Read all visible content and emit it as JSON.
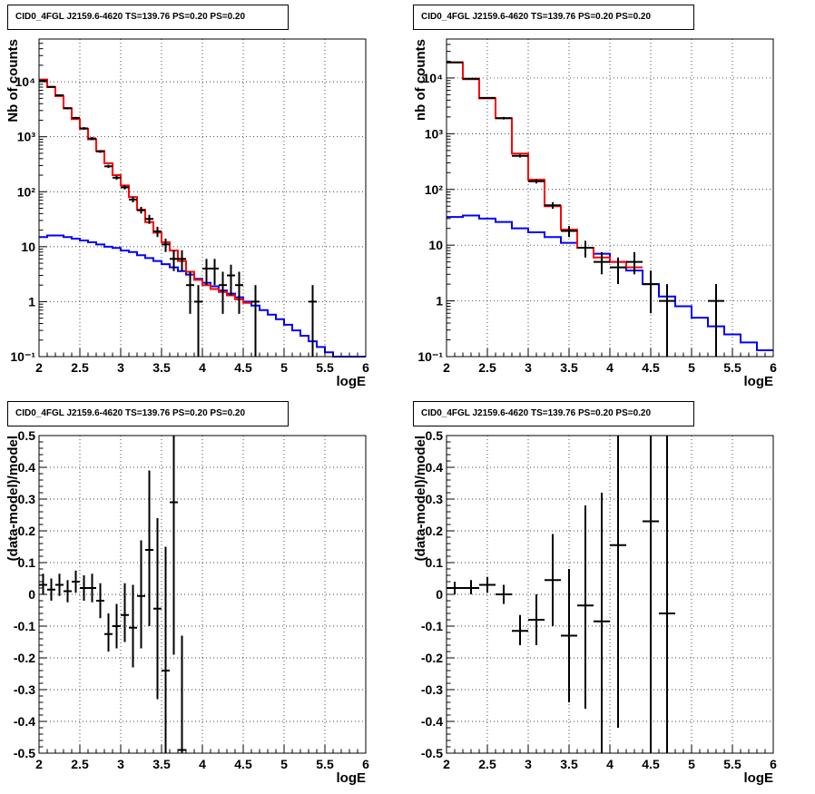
{
  "chart_data": [
    {
      "type": "histogram",
      "title": "CID0_4FGL J2159.6-4620 TS=139.76 PS=0.20 PS=0.20",
      "xlabel": "logE",
      "ylabel": "Nb of counts",
      "xlim": [
        2,
        6
      ],
      "ylim": [
        0.1,
        60000
      ],
      "log_y": true,
      "grid": true,
      "x_ticks": [
        "2",
        "2.5",
        "3",
        "3.5",
        "4",
        "4.5",
        "5",
        "5.5",
        "6"
      ],
      "y_ticks": [
        "10⁻¹",
        "1",
        "10",
        "10²",
        "10³",
        "10⁴"
      ],
      "bin_width": 0.1,
      "model_total": {
        "color": "#ff0000",
        "bin_starts": [
          2.0,
          2.1,
          2.2,
          2.3,
          2.4,
          2.5,
          2.6,
          2.7,
          2.8,
          2.9,
          3.0,
          3.1,
          3.2,
          3.3,
          3.4,
          3.5,
          3.6,
          3.7,
          3.8,
          3.9,
          4.0,
          4.1,
          4.2,
          4.3,
          4.4,
          4.5
        ],
        "values": [
          11000,
          8000,
          5500,
          3300,
          2100,
          1400,
          900,
          550,
          330,
          200,
          130,
          80,
          47,
          28,
          18,
          12,
          8.5,
          5.5,
          3.5,
          2.5,
          2.0,
          1.7,
          1.5,
          1.3,
          1.1,
          0.95
        ]
      },
      "model_background": {
        "color": "#0000ff",
        "bin_starts": [
          2.0,
          2.1,
          2.2,
          2.3,
          2.4,
          2.5,
          2.6,
          2.7,
          2.8,
          2.9,
          3.0,
          3.1,
          3.2,
          3.3,
          3.4,
          3.5,
          3.6,
          3.7,
          3.8,
          3.9,
          4.0,
          4.1,
          4.2,
          4.3,
          4.4,
          4.5,
          4.6,
          4.7,
          4.8,
          4.9,
          5.0,
          5.1,
          5.2,
          5.3,
          5.4,
          5.5,
          5.6,
          5.7,
          5.8,
          5.9
        ],
        "values": [
          15,
          16,
          16,
          15,
          14,
          13,
          12,
          11,
          10,
          9.5,
          8.5,
          8,
          7,
          6.2,
          5.5,
          4.8,
          4.2,
          3.6,
          3.1,
          2.6,
          2.2,
          1.9,
          1.6,
          1.4,
          1.2,
          1.0,
          0.85,
          0.7,
          0.58,
          0.48,
          0.38,
          0.3,
          0.24,
          0.19,
          0.15,
          0.12,
          0.1,
          0.1,
          0.1,
          0.1
        ]
      },
      "data_points": [
        {
          "x": 2.05,
          "y": 10500,
          "lo": 10300,
          "hi": 10700
        },
        {
          "x": 2.15,
          "y": 8100,
          "lo": 7900,
          "hi": 8300
        },
        {
          "x": 2.25,
          "y": 5700,
          "lo": 5500,
          "hi": 5900
        },
        {
          "x": 2.35,
          "y": 3300,
          "lo": 3150,
          "hi": 3450
        },
        {
          "x": 2.45,
          "y": 2200,
          "lo": 2100,
          "hi": 2300
        },
        {
          "x": 2.55,
          "y": 1420,
          "lo": 1340,
          "hi": 1500
        },
        {
          "x": 2.65,
          "y": 930,
          "lo": 870,
          "hi": 990
        },
        {
          "x": 2.75,
          "y": 540,
          "lo": 510,
          "hi": 570
        },
        {
          "x": 2.85,
          "y": 290,
          "lo": 270,
          "hi": 310
        },
        {
          "x": 2.95,
          "y": 180,
          "lo": 165,
          "hi": 195
        },
        {
          "x": 3.05,
          "y": 120,
          "lo": 110,
          "hi": 130
        },
        {
          "x": 3.15,
          "y": 72,
          "lo": 64,
          "hi": 80
        },
        {
          "x": 3.25,
          "y": 46,
          "lo": 40,
          "hi": 53
        },
        {
          "x": 3.35,
          "y": 32,
          "lo": 26,
          "hi": 38
        },
        {
          "x": 3.45,
          "y": 19,
          "lo": 15,
          "hi": 23
        },
        {
          "x": 3.55,
          "y": 11,
          "lo": 8,
          "hi": 14
        },
        {
          "x": 3.65,
          "y": 6,
          "lo": 3.6,
          "hi": 8.6
        },
        {
          "x": 3.75,
          "y": 6,
          "lo": 3.6,
          "hi": 8.6
        },
        {
          "x": 3.85,
          "y": 2,
          "lo": 0.6,
          "hi": 3.5
        },
        {
          "x": 3.95,
          "y": 1,
          "lo": 0.1,
          "hi": 2.0
        },
        {
          "x": 4.05,
          "y": 4,
          "lo": 2.0,
          "hi": 6.0
        },
        {
          "x": 4.15,
          "y": 4,
          "lo": 2.0,
          "hi": 6.0
        },
        {
          "x": 4.25,
          "y": 2,
          "lo": 0.6,
          "hi": 3.5
        },
        {
          "x": 4.35,
          "y": 3,
          "lo": 1.3,
          "hi": 4.7
        },
        {
          "x": 4.45,
          "y": 2,
          "lo": 0.6,
          "hi": 3.5
        },
        {
          "x": 4.65,
          "y": 1,
          "lo": 0.1,
          "hi": 2.0
        },
        {
          "x": 5.35,
          "y": 1,
          "lo": 0.1,
          "hi": 2.0
        }
      ]
    },
    {
      "type": "histogram",
      "title": "CID0_4FGL J2159.6-4620 TS=139.76 PS=0.20 PS=0.20",
      "xlabel": "logE",
      "ylabel": "nb of counts",
      "xlim": [
        2,
        6
      ],
      "ylim": [
        0.1,
        50000
      ],
      "log_y": true,
      "grid": true,
      "x_ticks": [
        "2",
        "2.5",
        "3",
        "3.5",
        "4",
        "4.5",
        "5",
        "5.5",
        "6"
      ],
      "y_ticks": [
        "10⁻¹",
        "1",
        "10",
        "10²",
        "10³",
        "10⁴"
      ],
      "bin_width": 0.2,
      "model_total": {
        "color": "#ff0000",
        "bin_starts": [
          2.0,
          2.2,
          2.4,
          2.6,
          2.8,
          3.0,
          3.2,
          3.4,
          3.6,
          3.8,
          4.0,
          4.2
        ],
        "values": [
          19000,
          9500,
          4300,
          1900,
          440,
          150,
          50,
          19,
          9,
          6,
          5,
          4
        ]
      },
      "model_background": {
        "color": "#0000ff",
        "bin_starts": [
          2.0,
          2.2,
          2.4,
          2.6,
          2.8,
          3.0,
          3.2,
          3.4,
          3.6,
          3.8,
          4.0,
          4.2,
          4.4,
          4.6,
          4.8,
          5.0,
          5.2,
          5.4,
          5.6,
          5.8
        ],
        "values": [
          32,
          34,
          30,
          26,
          20,
          17,
          14,
          11,
          9,
          7,
          5,
          3.5,
          2.0,
          1.2,
          0.8,
          0.5,
          0.35,
          0.25,
          0.18,
          0.13
        ]
      },
      "data_points": [
        {
          "x": 2.1,
          "y": 19000,
          "lo": 18700,
          "hi": 19300
        },
        {
          "x": 2.3,
          "y": 9700,
          "lo": 9500,
          "hi": 9900
        },
        {
          "x": 2.5,
          "y": 4400,
          "lo": 4250,
          "hi": 4550
        },
        {
          "x": 2.7,
          "y": 1900,
          "lo": 1800,
          "hi": 2000
        },
        {
          "x": 2.9,
          "y": 400,
          "lo": 375,
          "hi": 425
        },
        {
          "x": 3.1,
          "y": 140,
          "lo": 128,
          "hi": 152
        },
        {
          "x": 3.3,
          "y": 52,
          "lo": 45,
          "hi": 59
        },
        {
          "x": 3.5,
          "y": 18,
          "lo": 14,
          "hi": 22
        },
        {
          "x": 3.7,
          "y": 9,
          "lo": 6,
          "hi": 12
        },
        {
          "x": 3.9,
          "y": 5,
          "lo": 3,
          "hi": 7.5
        },
        {
          "x": 4.1,
          "y": 4,
          "lo": 2.0,
          "hi": 6.0
        },
        {
          "x": 4.3,
          "y": 5,
          "lo": 3,
          "hi": 7.5
        },
        {
          "x": 4.5,
          "y": 2,
          "lo": 0.6,
          "hi": 3.5
        },
        {
          "x": 4.7,
          "y": 1,
          "lo": 0.1,
          "hi": 2.0
        },
        {
          "x": 5.3,
          "y": 1,
          "lo": 0.1,
          "hi": 2.0
        }
      ]
    },
    {
      "type": "scatter",
      "title": "CID0_4FGL J2159.6-4620 TS=139.76 PS=0.20 PS=0.20",
      "xlabel": "logE",
      "ylabel": "(data-model)/model",
      "xlim": [
        2,
        6
      ],
      "ylim": [
        -0.5,
        0.5
      ],
      "grid": true,
      "x_ticks": [
        "2",
        "2.5",
        "3",
        "3.5",
        "4",
        "4.5",
        "5",
        "5.5",
        "6"
      ],
      "y_ticks": [
        "-0.5",
        "-0.4",
        "-0.3",
        "-0.2",
        "-0.1",
        "0",
        "0.1",
        "0.2",
        "0.3",
        "0.4",
        "0.5"
      ],
      "bin_width": 0.1,
      "data_points": [
        {
          "x": 2.05,
          "y": 0.03,
          "lo": 0.0,
          "hi": 0.065
        },
        {
          "x": 2.15,
          "y": 0.015,
          "lo": -0.02,
          "hi": 0.05
        },
        {
          "x": 2.25,
          "y": 0.03,
          "lo": -0.005,
          "hi": 0.065
        },
        {
          "x": 2.35,
          "y": 0.01,
          "lo": -0.025,
          "hi": 0.045
        },
        {
          "x": 2.45,
          "y": 0.04,
          "lo": 0.005,
          "hi": 0.075
        },
        {
          "x": 2.55,
          "y": 0.02,
          "lo": -0.02,
          "hi": 0.06
        },
        {
          "x": 2.65,
          "y": 0.02,
          "lo": -0.025,
          "hi": 0.065
        },
        {
          "x": 2.75,
          "y": -0.02,
          "lo": -0.075,
          "hi": 0.035
        },
        {
          "x": 2.85,
          "y": -0.125,
          "lo": -0.18,
          "hi": -0.06
        },
        {
          "x": 2.95,
          "y": -0.1,
          "lo": -0.17,
          "hi": -0.03
        },
        {
          "x": 3.05,
          "y": -0.065,
          "lo": -0.15,
          "hi": 0.035
        },
        {
          "x": 3.15,
          "y": -0.105,
          "lo": -0.23,
          "hi": 0.03
        },
        {
          "x": 3.25,
          "y": -0.005,
          "lo": -0.17,
          "hi": 0.17
        },
        {
          "x": 3.35,
          "y": 0.14,
          "lo": -0.1,
          "hi": 0.39
        },
        {
          "x": 3.45,
          "y": -0.045,
          "lo": -0.33,
          "hi": 0.24
        },
        {
          "x": 3.55,
          "y": -0.24,
          "lo": -0.5,
          "hi": 0.15
        },
        {
          "x": 3.65,
          "y": 0.29,
          "lo": -0.19,
          "hi": 0.5
        },
        {
          "x": 3.75,
          "y": -0.49,
          "lo": -0.5,
          "hi": -0.13
        }
      ]
    },
    {
      "type": "scatter",
      "title": "CID0_4FGL J2159.6-4620 TS=139.76 PS=0.20 PS=0.20",
      "xlabel": "logE",
      "ylabel": "(data-model)/model",
      "xlim": [
        2,
        6
      ],
      "ylim": [
        -0.5,
        0.5
      ],
      "grid": true,
      "x_ticks": [
        "2",
        "2.5",
        "3",
        "3.5",
        "4",
        "4.5",
        "5",
        "5.5",
        "6"
      ],
      "y_ticks": [
        "-0.5",
        "-0.4",
        "-0.3",
        "-0.2",
        "-0.1",
        "0",
        "0.1",
        "0.2",
        "0.3",
        "0.4",
        "0.5"
      ],
      "bin_width": 0.2,
      "data_points": [
        {
          "x": 2.1,
          "y": 0.02,
          "lo": 0.0,
          "hi": 0.04
        },
        {
          "x": 2.3,
          "y": 0.02,
          "lo": 0.0,
          "hi": 0.045
        },
        {
          "x": 2.5,
          "y": 0.03,
          "lo": 0.005,
          "hi": 0.055
        },
        {
          "x": 2.7,
          "y": 0.0,
          "lo": -0.03,
          "hi": 0.03
        },
        {
          "x": 2.9,
          "y": -0.115,
          "lo": -0.16,
          "hi": -0.065
        },
        {
          "x": 3.1,
          "y": -0.08,
          "lo": -0.16,
          "hi": 0.0
        },
        {
          "x": 3.3,
          "y": 0.045,
          "lo": -0.1,
          "hi": 0.19
        },
        {
          "x": 3.5,
          "y": -0.13,
          "lo": -0.34,
          "hi": 0.08
        },
        {
          "x": 3.7,
          "y": -0.035,
          "lo": -0.36,
          "hi": 0.28
        },
        {
          "x": 3.9,
          "y": -0.085,
          "lo": -0.5,
          "hi": 0.32
        },
        {
          "x": 4.1,
          "y": 0.155,
          "lo": -0.42,
          "hi": 0.5
        },
        {
          "x": 4.5,
          "y": 0.23,
          "lo": -0.5,
          "hi": 0.5
        },
        {
          "x": 4.7,
          "y": -0.06,
          "lo": -0.5,
          "hi": 0.5
        }
      ]
    }
  ]
}
